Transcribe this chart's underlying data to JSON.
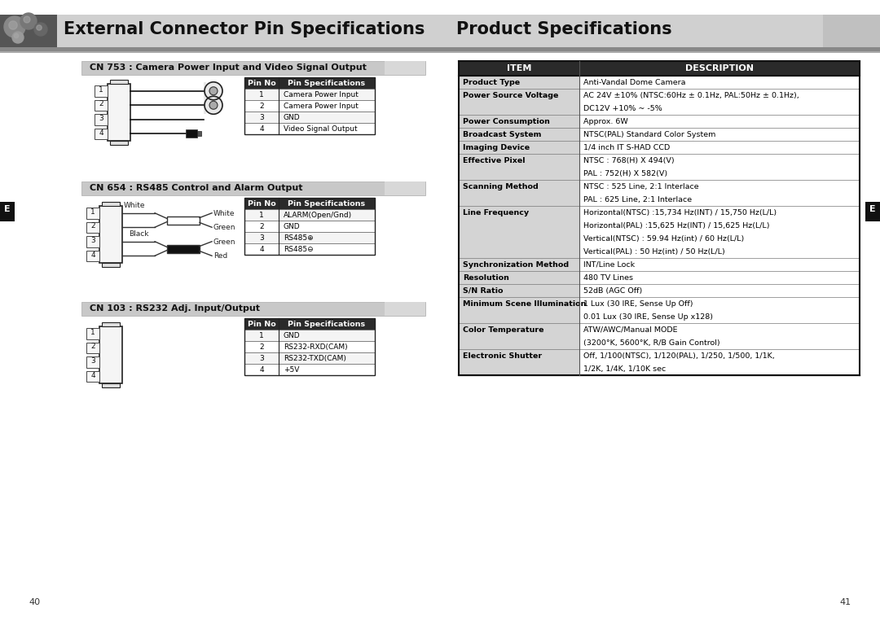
{
  "page_bg": "#ffffff",
  "header_text_left": "External Connector Pin Specifications",
  "header_text_right": "Product Specifications",
  "cn753_title": "CN 753 : Camera Power Input and Video Signal Output",
  "cn753_pins": [
    "1",
    "2",
    "3",
    "4"
  ],
  "cn753_table_headers": [
    "Pin No",
    "Pin Specifications"
  ],
  "cn753_table_rows": [
    [
      "1",
      "Camera Power Input"
    ],
    [
      "2",
      "Camera Power Input"
    ],
    [
      "3",
      "GND"
    ],
    [
      "4",
      "Video Signal Output"
    ]
  ],
  "cn654_title": "CN 654 : RS485 Control and Alarm Output",
  "cn654_pins": [
    "1",
    "2",
    "3",
    "4"
  ],
  "cn654_table_headers": [
    "Pin No",
    "Pin Specifications"
  ],
  "cn654_table_rows": [
    [
      "1",
      "ALARM(Open/Gnd)"
    ],
    [
      "2",
      "GND"
    ],
    [
      "3",
      "RS485⊕"
    ],
    [
      "4",
      "RS485⊖"
    ]
  ],
  "cn103_title": "CN 103 : RS232 Adj. Input/Output",
  "cn103_pins": [
    "1",
    "2",
    "3",
    "4"
  ],
  "cn103_table_headers": [
    "Pin No",
    "Pin Specifications"
  ],
  "cn103_table_rows": [
    [
      "1",
      "GND"
    ],
    [
      "2",
      "RS232-RXD(CAM)"
    ],
    [
      "3",
      "RS232-TXD(CAM)"
    ],
    [
      "4",
      "+5V"
    ]
  ],
  "right_section_title_items": [
    "ITEM",
    "DESCRIPTION"
  ],
  "right_section_rows": [
    [
      "Product Type",
      "Anti-Vandal Dome Camera",
      1
    ],
    [
      "Power Source Voltage",
      "AC 24V ±10% (NTSC:60Hz ± 0.1Hz, PAL:50Hz ± 0.1Hz),\nDC12V +10% ~ -5%",
      2
    ],
    [
      "Power Consumption",
      "Approx. 6W",
      1
    ],
    [
      "Broadcast System",
      "NTSC(PAL) Standard Color System",
      1
    ],
    [
      "Imaging Device",
      "1/4 inch IT S-HAD CCD",
      1
    ],
    [
      "Effective Pixel",
      "NTSC : 768(H) X 494(V)\nPAL : 752(H) X 582(V)",
      2
    ],
    [
      "Scanning Method",
      "NTSC : 525 Line, 2:1 Interlace\nPAL : 625 Line, 2:1 Interlace",
      2
    ],
    [
      "Line Frequency",
      "Horizontal(NTSC) :15,734 Hz(INT) / 15,750 Hz(L/L)\nHorizontal(PAL) :15,625 Hz(INT) / 15,625 Hz(L/L)\nVertical(NTSC) : 59.94 Hz(int) / 60 Hz(L/L)\nVertical(PAL) : 50 Hz(int) / 50 Hz(L/L)",
      4
    ],
    [
      "Synchronization Method",
      "INT/Line Lock",
      1
    ],
    [
      "Resolution",
      "480 TV Lines",
      1
    ],
    [
      "S/N Ratio",
      "52dB (AGC Off)",
      1
    ],
    [
      "Minimum Scene Illumination",
      "1 Lux (30 IRE, Sense Up Off)\n0.01 Lux (30 IRE, Sense Up x128)",
      2
    ],
    [
      "Color Temperature",
      "ATW/AWC/Manual MODE\n(3200°K, 5600°K, R/B Gain Control)",
      2
    ],
    [
      "Electronic Shutter",
      "Off, 1/100(NTSC), 1/120(PAL), 1/250, 1/500, 1/1K,\n1/2K, 1/4K, 1/10K sec",
      2
    ]
  ],
  "page_num_left": "40",
  "page_num_right": "41",
  "section_header_bg": "#c8c8c8",
  "table_header_bg": "#2a2a2a",
  "right_item_bg": "#d4d4d4"
}
